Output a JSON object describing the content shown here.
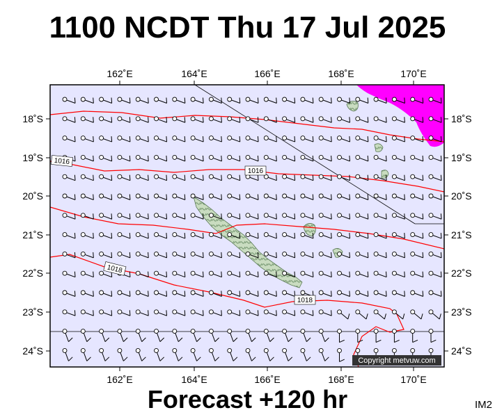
{
  "header": {
    "title": "1100 NCDT Thu 17 Jul 2025"
  },
  "footer": {
    "forecast": "Forecast +120 hr",
    "code": "IM2"
  },
  "map": {
    "lon_labels_top": [
      "162˚E",
      "164˚E",
      "166˚E",
      "168˚E",
      "170˚E"
    ],
    "lon_labels_bottom": [
      "162˚E",
      "164˚E",
      "166˚E",
      "168˚E",
      "170˚E"
    ],
    "lat_labels_left": [
      "18˚S",
      "19˚S",
      "20˚S",
      "21˚S",
      "22˚S",
      "23˚S",
      "24˚S"
    ],
    "lat_labels_right": [
      "18˚S",
      "19˚S",
      "20˚S",
      "21˚S",
      "22˚S",
      "23˚S",
      "24˚S"
    ],
    "isobar_labels": [
      "1016",
      "1016",
      "1018",
      "1018"
    ],
    "copyright": "Copyright metvuw.com",
    "colors": {
      "ocean": "#e6e6ff",
      "isobar": "#ff0000",
      "rain": "#ff00ff",
      "land": "#c6dcbe",
      "land_relief": "#8fae8a"
    }
  }
}
